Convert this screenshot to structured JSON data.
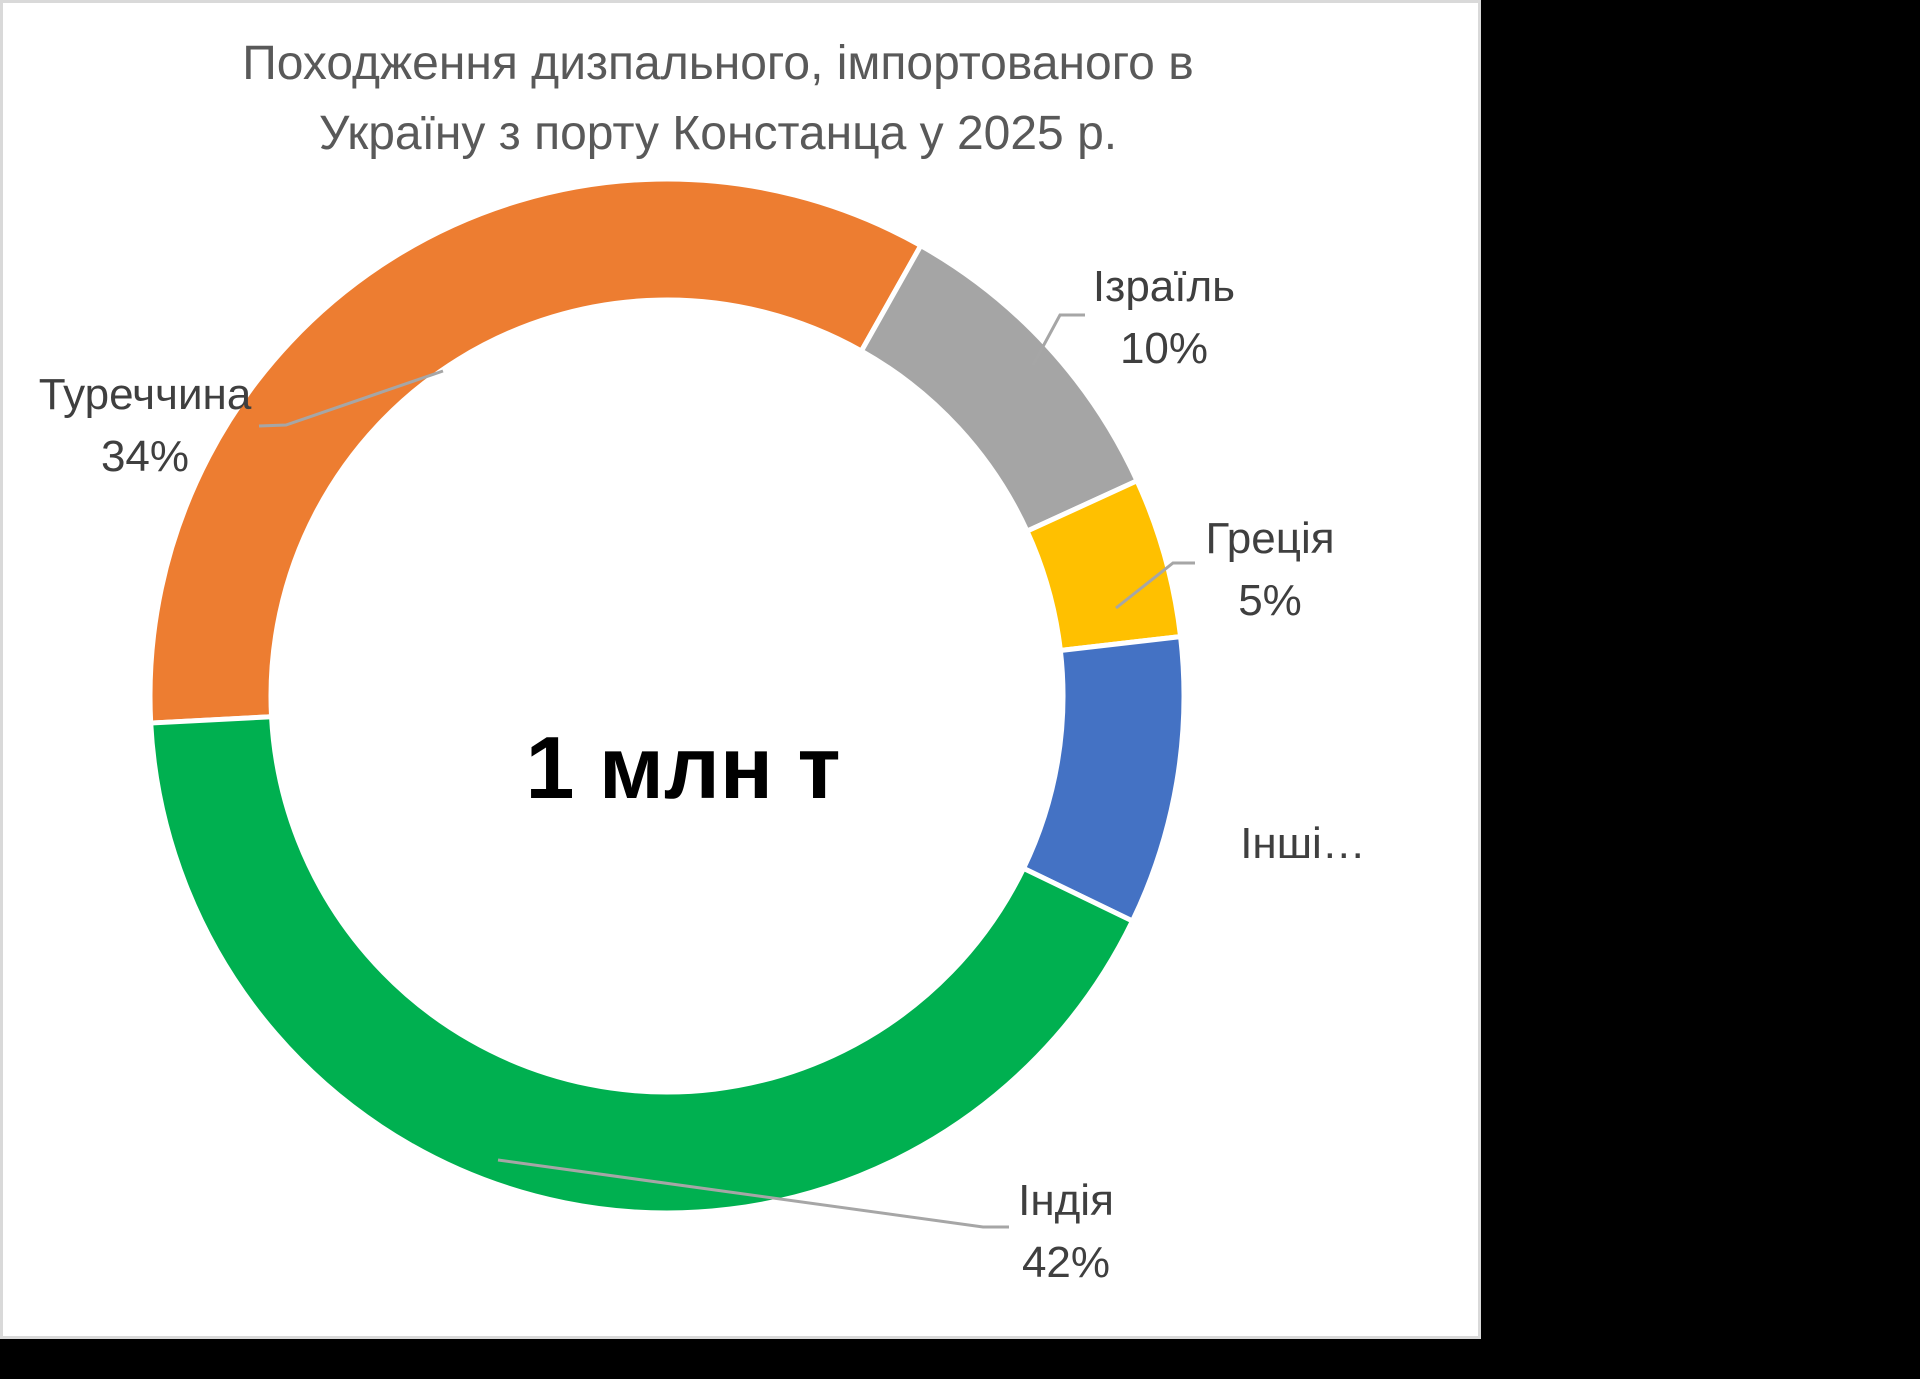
{
  "page": {
    "background": "#000000",
    "panel_background": "#FFFFFF",
    "panel_border_color": "#D9D9D9"
  },
  "title": {
    "line1": "Походження дизпального, імпортованого в",
    "line2": "Україну з порту Констанца у 2025 р.",
    "color": "#595959"
  },
  "center_label": {
    "text": "1 млн т",
    "color": "#000000"
  },
  "chart_data": {
    "type": "pie",
    "subtype": "donut",
    "title": "Походження дизпального, імпортованого в Україну з порту Констанца у 2025 р.",
    "center_total_label": "1 млн т",
    "unit": "percent",
    "categories": [
      "Туреччина",
      "Ізраїль",
      "Греція",
      "Інші",
      "Індія"
    ],
    "values": [
      34,
      10,
      5,
      9,
      42
    ],
    "slices": [
      {
        "label": "Туреччина",
        "label_shown": "Туреччина",
        "pct": 34,
        "pct_shown": "34%",
        "color": "#ED7D31"
      },
      {
        "label": "Ізраїль",
        "label_shown": "Ізраїль",
        "pct": 10,
        "pct_shown": "10%",
        "color": "#A5A5A5"
      },
      {
        "label": "Греція",
        "label_shown": "Греція",
        "pct": 5,
        "pct_shown": "5%",
        "color": "#FFC000"
      },
      {
        "label": "Інші",
        "label_shown": "Інші…",
        "pct": 9,
        "pct_shown": "",
        "color": "#4472C4"
      },
      {
        "label": "Індія",
        "label_shown": "Індія",
        "pct": 42,
        "pct_shown": "42%",
        "color": "#00B050"
      }
    ],
    "legend": "none",
    "data_labels_position": "outside-with-leader-lines"
  },
  "callouts": {
    "turkey": {
      "line1": "Туреччина",
      "line2": "34%"
    },
    "israel": {
      "line1": "Ізраїль",
      "line2": "10%"
    },
    "greece": {
      "line1": "Греція",
      "line2": "5%"
    },
    "others": {
      "line1": "Інші…",
      "line2": ""
    },
    "india": {
      "line1": "Індія",
      "line2": "42%"
    }
  },
  "colors": {
    "leader_line": "#A6A6A6",
    "callout_text": "#3F3F3F",
    "title_text": "#595959"
  }
}
